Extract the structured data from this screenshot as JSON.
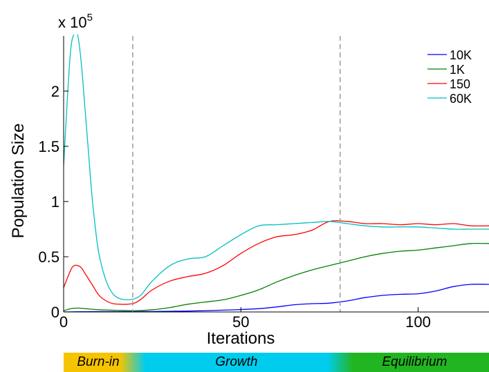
{
  "chart_data": {
    "type": "line",
    "title": "",
    "xlabel": "Iterations",
    "ylabel": "Population Size",
    "y_exponent_label": "x 10",
    "y_exponent": "5",
    "xlim": [
      0,
      120
    ],
    "ylim": [
      0,
      2.5
    ],
    "y_scale_note": "values in units of 10^5",
    "xticks": [
      "0",
      "50",
      "100"
    ],
    "xtick_values": [
      0,
      50,
      100
    ],
    "yticks": [
      "0",
      "0.5",
      "1",
      "1.5",
      "2"
    ],
    "ytick_values": [
      0,
      0.5,
      1,
      1.5,
      2
    ],
    "grid": false,
    "legend_position": "top-right",
    "phase_dividers_x": [
      19.5,
      78
    ],
    "series": [
      {
        "name": "10K",
        "color": "#0000ff",
        "x": [
          0,
          5,
          10,
          15,
          20,
          25,
          30,
          35,
          40,
          45,
          50,
          55,
          60,
          65,
          70,
          75,
          80,
          85,
          90,
          95,
          100,
          105,
          110,
          115,
          120
        ],
        "y": [
          0,
          0.002,
          0.003,
          0.003,
          0.003,
          0.004,
          0.006,
          0.008,
          0.012,
          0.016,
          0.022,
          0.03,
          0.045,
          0.065,
          0.075,
          0.08,
          0.1,
          0.13,
          0.15,
          0.16,
          0.165,
          0.19,
          0.23,
          0.25,
          0.25
        ]
      },
      {
        "name": "1K",
        "color": "#008000",
        "x": [
          0,
          2,
          4,
          6,
          8,
          10,
          15,
          20,
          25,
          30,
          35,
          40,
          45,
          50,
          55,
          60,
          65,
          70,
          75,
          80,
          85,
          90,
          95,
          100,
          105,
          110,
          115,
          120
        ],
        "y": [
          0.01,
          0.03,
          0.035,
          0.03,
          0.025,
          0.02,
          0.015,
          0.012,
          0.02,
          0.04,
          0.07,
          0.09,
          0.11,
          0.15,
          0.2,
          0.27,
          0.33,
          0.38,
          0.42,
          0.46,
          0.5,
          0.53,
          0.55,
          0.56,
          0.58,
          0.6,
          0.62,
          0.62
        ]
      },
      {
        "name": "150",
        "color": "#ff0000",
        "x": [
          0,
          2,
          3,
          4,
          5,
          6,
          8,
          10,
          12,
          14,
          16,
          18,
          20,
          22,
          25,
          30,
          35,
          40,
          45,
          50,
          55,
          60,
          65,
          70,
          75,
          80,
          85,
          90,
          95,
          100,
          105,
          110,
          115,
          120
        ],
        "y": [
          0.22,
          0.38,
          0.42,
          0.42,
          0.4,
          0.35,
          0.25,
          0.15,
          0.1,
          0.075,
          0.07,
          0.07,
          0.08,
          0.12,
          0.2,
          0.28,
          0.32,
          0.35,
          0.42,
          0.53,
          0.62,
          0.68,
          0.7,
          0.74,
          0.82,
          0.82,
          0.8,
          0.8,
          0.79,
          0.8,
          0.79,
          0.8,
          0.78,
          0.78
        ]
      },
      {
        "name": "60K",
        "color": "#00bfbf",
        "x": [
          0,
          1,
          2,
          3,
          4,
          5,
          6,
          7,
          8,
          9,
          10,
          12,
          14,
          16,
          18,
          20,
          22,
          25,
          30,
          35,
          40,
          45,
          50,
          55,
          60,
          65,
          70,
          75,
          80,
          85,
          90,
          95,
          100,
          105,
          110,
          115,
          120
        ],
        "y": [
          1.32,
          1.9,
          2.38,
          2.52,
          2.5,
          2.25,
          1.85,
          1.45,
          1.05,
          0.75,
          0.52,
          0.28,
          0.16,
          0.12,
          0.11,
          0.12,
          0.16,
          0.28,
          0.42,
          0.48,
          0.5,
          0.6,
          0.7,
          0.78,
          0.79,
          0.8,
          0.81,
          0.82,
          0.8,
          0.78,
          0.77,
          0.77,
          0.77,
          0.76,
          0.75,
          0.75,
          0.75
        ]
      }
    ]
  },
  "phases": {
    "burn_in": "Burn-in",
    "growth": "Growth",
    "equilibrium": "Equilibrium"
  },
  "phase_colors": {
    "burn_in": "#f5c400",
    "growth": "#00ccee",
    "equilibrium": "#22b522"
  }
}
